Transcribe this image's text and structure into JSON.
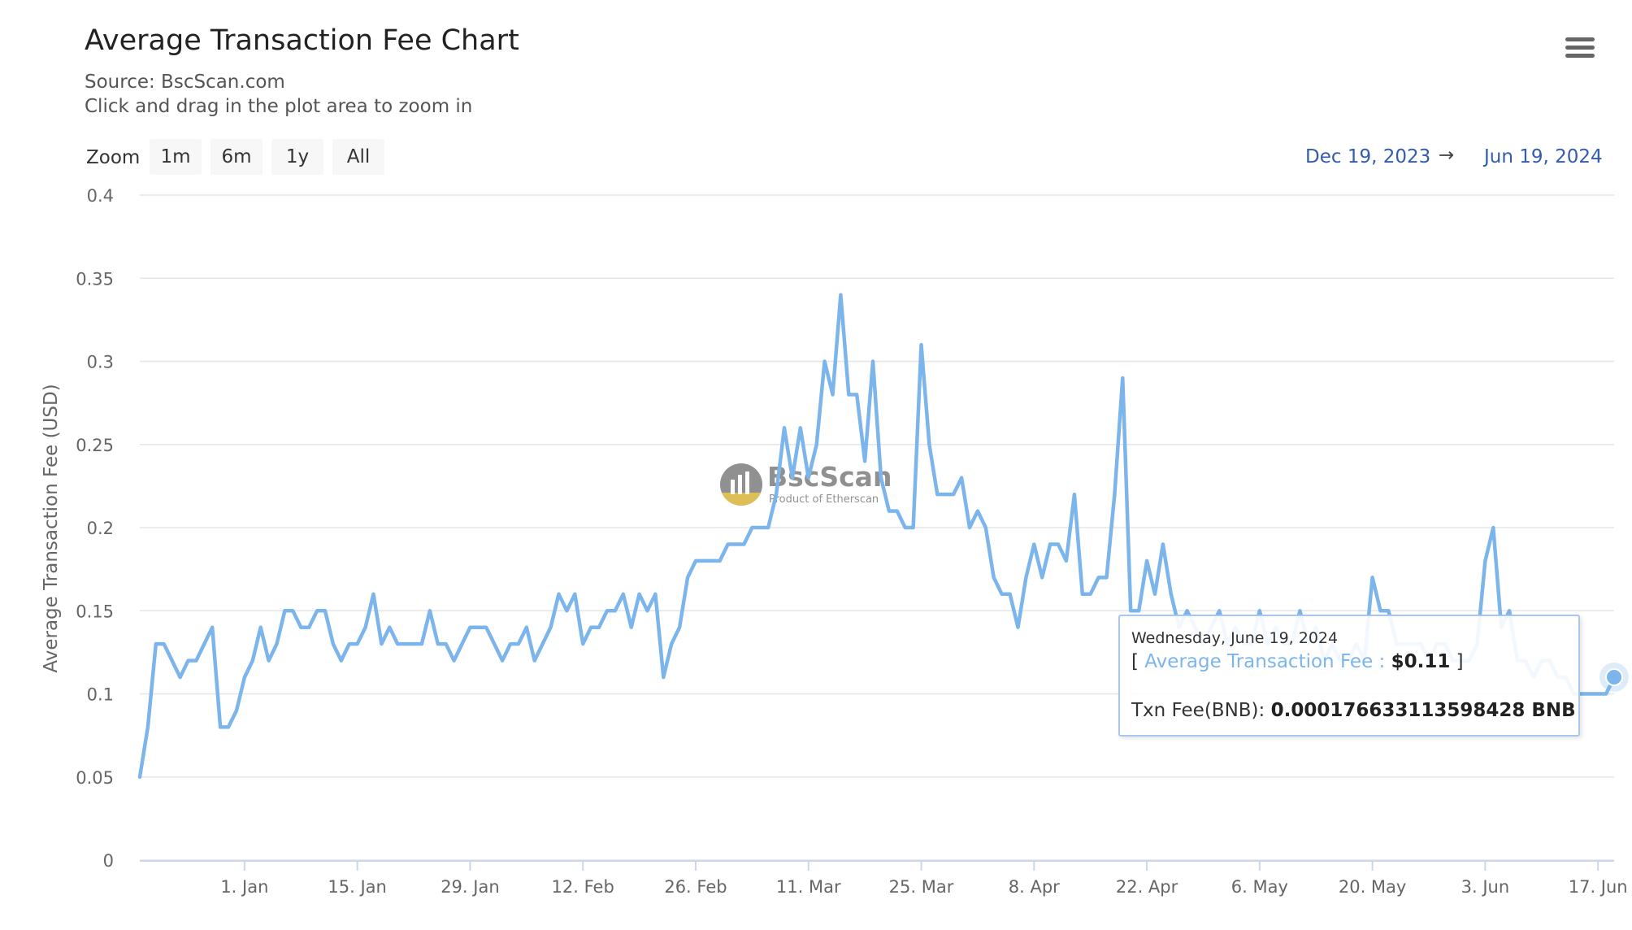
{
  "header": {
    "title": "Average Transaction Fee Chart",
    "source": "Source: BscScan.com",
    "hint": "Click and drag in the plot area to zoom in",
    "menu_icon": "hamburger-menu-icon"
  },
  "zoom": {
    "label": "Zoom",
    "buttons": [
      {
        "label": "1m",
        "active": false
      },
      {
        "label": "6m",
        "active": true
      },
      {
        "label": "1y",
        "active": false
      },
      {
        "label": "All",
        "active": false
      }
    ]
  },
  "range": {
    "from": "Dec 19, 2023",
    "arrow": "→",
    "to": "Jun 19, 2024"
  },
  "watermark": {
    "brand": "BscScan",
    "tagline": "Product of Etherscan"
  },
  "tooltip": {
    "date": "Wednesday, June 19, 2024",
    "bracket_open": "[",
    "series_label": "Average Transaction Fee :",
    "value": "$0.11",
    "bracket_close": "]",
    "bnb_label": "Txn Fee(BNB):",
    "bnb_value": "0.000176633113598428 BNB"
  },
  "colors": {
    "series": "#7cb5ec",
    "grid": "#e6e6e6",
    "range_text": "#335cad"
  },
  "chart_data": {
    "type": "line",
    "title": "Average Transaction Fee Chart",
    "ylabel": "Average Transaction Fee (USD)",
    "xlabel": "",
    "ylim": [
      0,
      0.4
    ],
    "yticks": [
      0,
      0.05,
      0.1,
      0.15,
      0.2,
      0.25,
      0.3,
      0.35,
      0.4
    ],
    "ytick_labels": [
      "0",
      "0.05",
      "0.1",
      "0.15",
      "0.2",
      "0.25",
      "0.3",
      "0.35",
      "0.4"
    ],
    "xlim": [
      "2023-12-19",
      "2024-06-19"
    ],
    "xticks": [
      {
        "date": "2024-01-01",
        "label": "1. Jan"
      },
      {
        "date": "2024-01-15",
        "label": "15. Jan"
      },
      {
        "date": "2024-01-29",
        "label": "29. Jan"
      },
      {
        "date": "2024-02-12",
        "label": "12. Feb"
      },
      {
        "date": "2024-02-26",
        "label": "26. Feb"
      },
      {
        "date": "2024-03-11",
        "label": "11. Mar"
      },
      {
        "date": "2024-03-25",
        "label": "25. Mar"
      },
      {
        "date": "2024-04-08",
        "label": "8. Apr"
      },
      {
        "date": "2024-04-22",
        "label": "22. Apr"
      },
      {
        "date": "2024-05-06",
        "label": "6. May"
      },
      {
        "date": "2024-05-20",
        "label": "20. May"
      },
      {
        "date": "2024-06-03",
        "label": "3. Jun"
      },
      {
        "date": "2024-06-17",
        "label": "17. Jun"
      }
    ],
    "grid": true,
    "legend": "none",
    "series": [
      {
        "values": [
          [
            "2023-12-19",
            0.05
          ],
          [
            "2023-12-20",
            0.08
          ],
          [
            "2023-12-21",
            0.13
          ],
          [
            "2023-12-22",
            0.13
          ],
          [
            "2023-12-23",
            0.12
          ],
          [
            "2023-12-24",
            0.11
          ],
          [
            "2023-12-25",
            0.12
          ],
          [
            "2023-12-26",
            0.12
          ],
          [
            "2023-12-27",
            0.13
          ],
          [
            "2023-12-28",
            0.14
          ],
          [
            "2023-12-29",
            0.08
          ],
          [
            "2023-12-30",
            0.08
          ],
          [
            "2023-12-31",
            0.09
          ],
          [
            "2024-01-01",
            0.11
          ],
          [
            "2024-01-02",
            0.12
          ],
          [
            "2024-01-03",
            0.14
          ],
          [
            "2024-01-04",
            0.12
          ],
          [
            "2024-01-05",
            0.13
          ],
          [
            "2024-01-06",
            0.15
          ],
          [
            "2024-01-07",
            0.15
          ],
          [
            "2024-01-08",
            0.14
          ],
          [
            "2024-01-09",
            0.14
          ],
          [
            "2024-01-10",
            0.15
          ],
          [
            "2024-01-11",
            0.15
          ],
          [
            "2024-01-12",
            0.13
          ],
          [
            "2024-01-13",
            0.12
          ],
          [
            "2024-01-14",
            0.13
          ],
          [
            "2024-01-15",
            0.13
          ],
          [
            "2024-01-16",
            0.14
          ],
          [
            "2024-01-17",
            0.16
          ],
          [
            "2024-01-18",
            0.13
          ],
          [
            "2024-01-19",
            0.14
          ],
          [
            "2024-01-20",
            0.13
          ],
          [
            "2024-01-21",
            0.13
          ],
          [
            "2024-01-22",
            0.13
          ],
          [
            "2024-01-23",
            0.13
          ],
          [
            "2024-01-24",
            0.15
          ],
          [
            "2024-01-25",
            0.13
          ],
          [
            "2024-01-26",
            0.13
          ],
          [
            "2024-01-27",
            0.12
          ],
          [
            "2024-01-28",
            0.13
          ],
          [
            "2024-01-29",
            0.14
          ],
          [
            "2024-01-30",
            0.14
          ],
          [
            "2024-01-31",
            0.14
          ],
          [
            "2024-02-01",
            0.13
          ],
          [
            "2024-02-02",
            0.12
          ],
          [
            "2024-02-03",
            0.13
          ],
          [
            "2024-02-04",
            0.13
          ],
          [
            "2024-02-05",
            0.14
          ],
          [
            "2024-02-06",
            0.12
          ],
          [
            "2024-02-07",
            0.13
          ],
          [
            "2024-02-08",
            0.14
          ],
          [
            "2024-02-09",
            0.16
          ],
          [
            "2024-02-10",
            0.15
          ],
          [
            "2024-02-11",
            0.16
          ],
          [
            "2024-02-12",
            0.13
          ],
          [
            "2024-02-13",
            0.14
          ],
          [
            "2024-02-14",
            0.14
          ],
          [
            "2024-02-15",
            0.15
          ],
          [
            "2024-02-16",
            0.15
          ],
          [
            "2024-02-17",
            0.16
          ],
          [
            "2024-02-18",
            0.14
          ],
          [
            "2024-02-19",
            0.16
          ],
          [
            "2024-02-20",
            0.15
          ],
          [
            "2024-02-21",
            0.16
          ],
          [
            "2024-02-22",
            0.11
          ],
          [
            "2024-02-23",
            0.13
          ],
          [
            "2024-02-24",
            0.14
          ],
          [
            "2024-02-25",
            0.17
          ],
          [
            "2024-02-26",
            0.18
          ],
          [
            "2024-02-27",
            0.18
          ],
          [
            "2024-02-28",
            0.18
          ],
          [
            "2024-02-29",
            0.18
          ],
          [
            "2024-03-01",
            0.19
          ],
          [
            "2024-03-02",
            0.19
          ],
          [
            "2024-03-03",
            0.19
          ],
          [
            "2024-03-04",
            0.2
          ],
          [
            "2024-03-05",
            0.2
          ],
          [
            "2024-03-06",
            0.2
          ],
          [
            "2024-03-07",
            0.22
          ],
          [
            "2024-03-08",
            0.26
          ],
          [
            "2024-03-09",
            0.23
          ],
          [
            "2024-03-10",
            0.26
          ],
          [
            "2024-03-11",
            0.23
          ],
          [
            "2024-03-12",
            0.25
          ],
          [
            "2024-03-13",
            0.3
          ],
          [
            "2024-03-14",
            0.28
          ],
          [
            "2024-03-15",
            0.34
          ],
          [
            "2024-03-16",
            0.28
          ],
          [
            "2024-03-17",
            0.28
          ],
          [
            "2024-03-18",
            0.24
          ],
          [
            "2024-03-19",
            0.3
          ],
          [
            "2024-03-20",
            0.23
          ],
          [
            "2024-03-21",
            0.21
          ],
          [
            "2024-03-22",
            0.21
          ],
          [
            "2024-03-23",
            0.2
          ],
          [
            "2024-03-24",
            0.2
          ],
          [
            "2024-03-25",
            0.31
          ],
          [
            "2024-03-26",
            0.25
          ],
          [
            "2024-03-27",
            0.22
          ],
          [
            "2024-03-28",
            0.22
          ],
          [
            "2024-03-29",
            0.22
          ],
          [
            "2024-03-30",
            0.23
          ],
          [
            "2024-03-31",
            0.2
          ],
          [
            "2024-04-01",
            0.21
          ],
          [
            "2024-04-02",
            0.2
          ],
          [
            "2024-04-03",
            0.17
          ],
          [
            "2024-04-04",
            0.16
          ],
          [
            "2024-04-05",
            0.16
          ],
          [
            "2024-04-06",
            0.14
          ],
          [
            "2024-04-07",
            0.17
          ],
          [
            "2024-04-08",
            0.19
          ],
          [
            "2024-04-09",
            0.17
          ],
          [
            "2024-04-10",
            0.19
          ],
          [
            "2024-04-11",
            0.19
          ],
          [
            "2024-04-12",
            0.18
          ],
          [
            "2024-04-13",
            0.22
          ],
          [
            "2024-04-14",
            0.16
          ],
          [
            "2024-04-15",
            0.16
          ],
          [
            "2024-04-16",
            0.17
          ],
          [
            "2024-04-17",
            0.17
          ],
          [
            "2024-04-18",
            0.22
          ],
          [
            "2024-04-19",
            0.29
          ],
          [
            "2024-04-20",
            0.15
          ],
          [
            "2024-04-21",
            0.15
          ],
          [
            "2024-04-22",
            0.18
          ],
          [
            "2024-04-23",
            0.16
          ],
          [
            "2024-04-24",
            0.19
          ],
          [
            "2024-04-25",
            0.16
          ],
          [
            "2024-04-26",
            0.14
          ],
          [
            "2024-04-27",
            0.15
          ],
          [
            "2024-04-28",
            0.14
          ],
          [
            "2024-04-29",
            0.13
          ],
          [
            "2024-04-30",
            0.14
          ],
          [
            "2024-05-01",
            0.15
          ],
          [
            "2024-05-02",
            0.13
          ],
          [
            "2024-05-03",
            0.14
          ],
          [
            "2024-05-04",
            0.13
          ],
          [
            "2024-05-05",
            0.13
          ],
          [
            "2024-05-06",
            0.15
          ],
          [
            "2024-05-07",
            0.13
          ],
          [
            "2024-05-08",
            0.14
          ],
          [
            "2024-05-09",
            0.13
          ],
          [
            "2024-05-10",
            0.13
          ],
          [
            "2024-05-11",
            0.15
          ],
          [
            "2024-05-12",
            0.13
          ],
          [
            "2024-05-13",
            0.14
          ],
          [
            "2024-05-14",
            0.12
          ],
          [
            "2024-05-15",
            0.13
          ],
          [
            "2024-05-16",
            0.12
          ],
          [
            "2024-05-17",
            0.12
          ],
          [
            "2024-05-18",
            0.13
          ],
          [
            "2024-05-19",
            0.12
          ],
          [
            "2024-05-20",
            0.17
          ],
          [
            "2024-05-21",
            0.15
          ],
          [
            "2024-05-22",
            0.15
          ],
          [
            "2024-05-23",
            0.13
          ],
          [
            "2024-05-24",
            0.13
          ],
          [
            "2024-05-25",
            0.13
          ],
          [
            "2024-05-26",
            0.13
          ],
          [
            "2024-05-27",
            0.12
          ],
          [
            "2024-05-28",
            0.13
          ],
          [
            "2024-05-29",
            0.13
          ],
          [
            "2024-05-30",
            0.12
          ],
          [
            "2024-05-31",
            0.12
          ],
          [
            "2024-06-01",
            0.12
          ],
          [
            "2024-06-02",
            0.13
          ],
          [
            "2024-06-03",
            0.18
          ],
          [
            "2024-06-04",
            0.2
          ],
          [
            "2024-06-05",
            0.14
          ],
          [
            "2024-06-06",
            0.15
          ],
          [
            "2024-06-07",
            0.12
          ],
          [
            "2024-06-08",
            0.12
          ],
          [
            "2024-06-09",
            0.11
          ],
          [
            "2024-06-10",
            0.12
          ],
          [
            "2024-06-11",
            0.12
          ],
          [
            "2024-06-12",
            0.11
          ],
          [
            "2024-06-13",
            0.11
          ],
          [
            "2024-06-14",
            0.1
          ],
          [
            "2024-06-15",
            0.1
          ],
          [
            "2024-06-16",
            0.1
          ],
          [
            "2024-06-17",
            0.1
          ],
          [
            "2024-06-18",
            0.1
          ],
          [
            "2024-06-19",
            0.11
          ]
        ]
      }
    ]
  }
}
